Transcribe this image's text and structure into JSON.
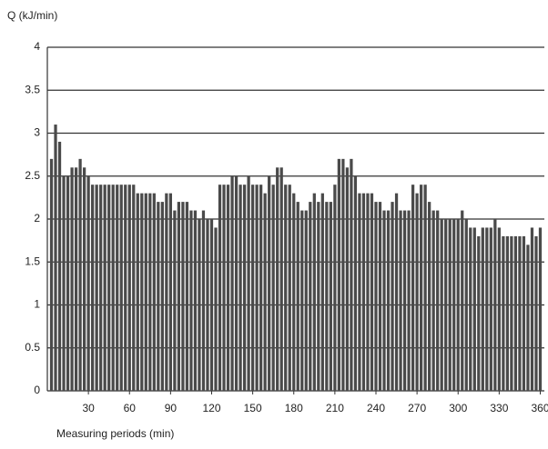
{
  "chart_data": {
    "type": "bar",
    "y_label": "Q (kJ/min)",
    "x_label": "Measuring periods (min)",
    "x": [
      3,
      6,
      9,
      12,
      15,
      18,
      21,
      24,
      27,
      30,
      33,
      36,
      39,
      42,
      45,
      48,
      51,
      54,
      57,
      60,
      63,
      66,
      69,
      72,
      75,
      78,
      81,
      84,
      87,
      90,
      93,
      96,
      99,
      102,
      105,
      108,
      111,
      114,
      117,
      120,
      123,
      126,
      129,
      132,
      135,
      138,
      141,
      144,
      147,
      150,
      153,
      156,
      159,
      162,
      165,
      168,
      171,
      174,
      177,
      180,
      183,
      186,
      189,
      192,
      195,
      198,
      201,
      204,
      207,
      210,
      213,
      216,
      219,
      222,
      225,
      228,
      231,
      234,
      237,
      240,
      243,
      246,
      249,
      252,
      255,
      258,
      261,
      264,
      267,
      270,
      273,
      276,
      279,
      282,
      285,
      288,
      291,
      294,
      297,
      300,
      303,
      306,
      309,
      312,
      315,
      318,
      321,
      324,
      327,
      330,
      333,
      336,
      339,
      342,
      345,
      348,
      351,
      354,
      357,
      360
    ],
    "values": [
      2.7,
      3.1,
      2.9,
      2.5,
      2.5,
      2.6,
      2.6,
      2.7,
      2.6,
      2.5,
      2.4,
      2.4,
      2.4,
      2.4,
      2.4,
      2.4,
      2.4,
      2.4,
      2.4,
      2.4,
      2.4,
      2.3,
      2.3,
      2.3,
      2.3,
      2.3,
      2.2,
      2.2,
      2.3,
      2.3,
      2.1,
      2.2,
      2.2,
      2.2,
      2.1,
      2.1,
      2.0,
      2.1,
      2.0,
      2.0,
      1.9,
      2.4,
      2.4,
      2.4,
      2.5,
      2.5,
      2.4,
      2.4,
      2.5,
      2.4,
      2.4,
      2.4,
      2.3,
      2.5,
      2.4,
      2.6,
      2.6,
      2.4,
      2.4,
      2.3,
      2.2,
      2.1,
      2.1,
      2.2,
      2.3,
      2.2,
      2.3,
      2.2,
      2.2,
      2.4,
      2.7,
      2.7,
      2.6,
      2.7,
      2.5,
      2.3,
      2.3,
      2.3,
      2.3,
      2.2,
      2.2,
      2.1,
      2.1,
      2.2,
      2.3,
      2.1,
      2.1,
      2.1,
      2.4,
      2.3,
      2.4,
      2.4,
      2.2,
      2.1,
      2.1,
      2.0,
      2.0,
      2.0,
      2.0,
      2.0,
      2.1,
      2.0,
      1.9,
      1.9,
      1.8,
      1.9,
      1.9,
      1.9,
      2.0,
      1.9,
      1.8,
      1.8,
      1.8,
      1.8,
      1.8,
      1.8,
      1.7,
      1.9,
      1.8,
      1.9
    ],
    "color": "#4a4a4a",
    "xlim": [
      0,
      363
    ],
    "xticks": [
      30,
      60,
      90,
      120,
      150,
      180,
      210,
      240,
      270,
      300,
      330,
      360
    ],
    "ylim": [
      0,
      4
    ],
    "yticks": [
      0,
      0.5,
      1,
      1.5,
      2,
      2.5,
      3,
      3.5,
      4
    ],
    "grid": true
  }
}
